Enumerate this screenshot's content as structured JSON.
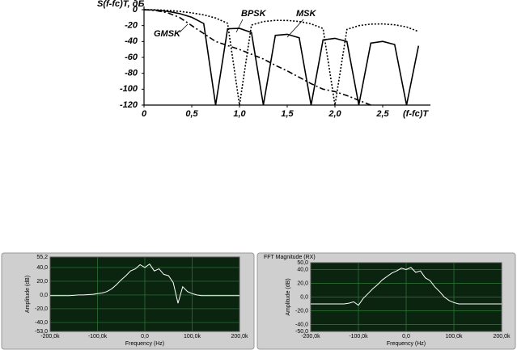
{
  "chart_data": [
    {
      "type": "line",
      "y_label": "S(f-fc)T, дБ",
      "x_label": "(f-fc)T",
      "x": [
        0,
        0.125,
        0.25,
        0.375,
        0.5,
        0.625,
        0.75,
        0.875,
        1.0,
        1.125,
        1.25,
        1.375,
        1.5,
        1.625,
        1.75,
        1.875,
        2.0,
        2.125,
        2.25,
        2.375,
        2.5,
        2.625,
        2.75,
        2.875
      ],
      "series": [
        {
          "name": "BPSK",
          "color": "#000000",
          "dash": "2,2",
          "values": [
            0,
            -0.22,
            -0.91,
            -2.11,
            -3.92,
            -6.55,
            -10.45,
            -17.1,
            -120,
            -19.3,
            -14.9,
            -13.4,
            -13.5,
            -14.8,
            -17.8,
            -23.7,
            -120,
            -24.8,
            -20,
            -18.1,
            -17.9,
            -19.0,
            -21.7,
            -27.5
          ]
        },
        {
          "name": "MSK",
          "color": "#000000",
          "dash": "none",
          "values": [
            0,
            -0.51,
            -2.1,
            -4.95,
            -9.54,
            -17.4,
            -120,
            -24.0,
            -23.5,
            -28.7,
            -120,
            -32.3,
            -30.9,
            -35.3,
            -120,
            -37.9,
            -36.0,
            -40.1,
            -120,
            -42.0,
            -39.9,
            -43.8,
            -120,
            -45.4
          ]
        },
        {
          "name": "GMSK",
          "color": "#000000",
          "dash": "7,3,2,3",
          "values": [
            0,
            -1,
            -4,
            -10,
            -20,
            -30,
            -40,
            -45,
            -50,
            -56,
            -62,
            -70,
            -77,
            -85,
            -93,
            -100,
            -103,
            -108,
            -114,
            -120,
            null,
            null,
            null,
            null
          ]
        }
      ],
      "xlim": [
        0,
        3
      ],
      "xticks": [
        0,
        {
          "value": 0.5,
          "label": "0,5"
        },
        {
          "value": 1.0,
          "label": "1,0"
        },
        {
          "value": 1.5,
          "label": "1,5"
        },
        {
          "value": 2.0,
          "label": "2,0"
        },
        {
          "value": 2.5,
          "label": "2,5"
        }
      ],
      "ylim": [
        -120,
        0
      ],
      "yticks": [
        0,
        -20,
        -40,
        -60,
        -80,
        -100,
        -120
      ],
      "grid": false
    },
    {
      "type": "line",
      "y_label": "Amplitude (dB)",
      "x_label": "Frequency (Hz)",
      "x": [
        -200000,
        -190000,
        -180000,
        -170000,
        -160000,
        -150000,
        -140000,
        -130000,
        -120000,
        -110000,
        -100000,
        -90000,
        -80000,
        -70000,
        -60000,
        -50000,
        -40000,
        -30000,
        -20000,
        -10000,
        0,
        10000,
        20000,
        30000,
        40000,
        50000,
        60000,
        70000,
        80000,
        90000,
        100000,
        110000,
        120000,
        130000,
        140000,
        150000,
        160000,
        170000,
        180000,
        190000,
        200000
      ],
      "series": [
        {
          "color": "#ffffff",
          "dash": "none",
          "values": [
            -1,
            -1,
            -1,
            -1,
            -1,
            -0.5,
            0,
            0,
            0.5,
            1,
            2,
            3,
            5,
            9,
            15,
            22,
            28,
            35,
            38,
            44,
            40,
            45,
            35,
            38,
            30,
            28,
            18,
            -12,
            12,
            5,
            2,
            0,
            -1,
            -1,
            -1,
            -1,
            -1,
            -1,
            -1,
            -1,
            -1
          ]
        }
      ],
      "xlim": [
        -200000,
        200000
      ],
      "xticks": [
        {
          "value": -200000,
          "label": "-200,0k"
        },
        {
          "value": -100000,
          "label": "-100,0k"
        },
        {
          "value": 0,
          "label": "0,0"
        },
        {
          "value": 100000,
          "label": "100,0k"
        },
        {
          "value": 200000,
          "label": "200,0k"
        }
      ],
      "ylim": [
        -53,
        55.2
      ],
      "yticks": [
        {
          "value": 55.2,
          "label": "55,2"
        },
        {
          "value": 40,
          "label": "40,0"
        },
        {
          "value": 20,
          "label": "20,0"
        },
        {
          "value": 0,
          "label": "0,0"
        },
        {
          "value": -20,
          "label": "-20,0"
        },
        {
          "value": -40,
          "label": "-40,0"
        },
        {
          "value": -53,
          "label": "-53,0"
        }
      ],
      "grid": true,
      "plot_background": "#0a2410",
      "grid_color": "#2f7a3a"
    },
    {
      "type": "line",
      "title": "FFT Magnitude (RX)",
      "y_label": "Amplitude (dB)",
      "x_label": "Frequency (Hz)",
      "x": [
        -200000,
        -190000,
        -180000,
        -170000,
        -160000,
        -150000,
        -140000,
        -130000,
        -120000,
        -110000,
        -100000,
        -90000,
        -80000,
        -70000,
        -60000,
        -50000,
        -40000,
        -30000,
        -20000,
        -10000,
        0,
        10000,
        20000,
        30000,
        40000,
        50000,
        60000,
        70000,
        80000,
        90000,
        100000,
        110000,
        120000,
        130000,
        140000,
        150000,
        160000,
        170000,
        180000,
        190000,
        200000
      ],
      "series": [
        {
          "color": "#ffffff",
          "dash": "none",
          "values": [
            -10,
            -10,
            -10,
            -10,
            -10,
            -10,
            -10,
            -10,
            -9,
            -7,
            -12,
            -2,
            5,
            12,
            18,
            25,
            30,
            35,
            38,
            42,
            40,
            43,
            36,
            38,
            28,
            24,
            15,
            8,
            0,
            -5,
            -8,
            -10,
            -10,
            -10,
            -10,
            -10,
            -10,
            -10,
            -10,
            -10,
            -10
          ]
        }
      ],
      "xlim": [
        -200000,
        200000
      ],
      "xticks": [
        {
          "value": -200000,
          "label": "-200,0k"
        },
        {
          "value": -100000,
          "label": "-100,0k"
        },
        {
          "value": 0,
          "label": "0,0"
        },
        {
          "value": 100000,
          "label": "100,0k"
        },
        {
          "value": 200000,
          "label": "200,0k"
        }
      ],
      "ylim": [
        -50,
        50
      ],
      "yticks": [
        {
          "value": 50,
          "label": "50,0"
        },
        {
          "value": 40,
          "label": "40,0"
        },
        {
          "value": 20,
          "label": "20,0"
        },
        {
          "value": 0,
          "label": "0,0"
        },
        {
          "value": -20,
          "label": "-20,0"
        },
        {
          "value": -40,
          "label": "-40,0"
        },
        {
          "value": -50,
          "label": "-50,0"
        }
      ],
      "grid": true,
      "plot_background": "#0a2410",
      "grid_color": "#2f7a3a"
    }
  ]
}
